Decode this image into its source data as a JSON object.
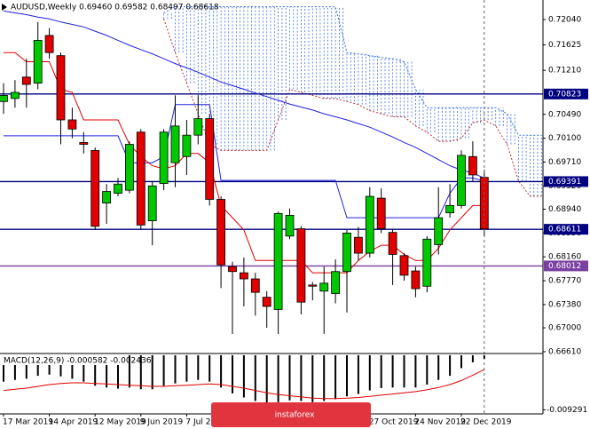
{
  "watermark": "instaforex",
  "chart_data": [
    {
      "type": "candlestick",
      "title": "AUDUSD,Weekly  0.69460 0.69582 0.68497 0.68618",
      "categories": [
        "17 Mar 2019",
        null,
        null,
        null,
        "14 Apr 2019",
        null,
        null,
        null,
        "12 May 2019",
        null,
        null,
        null,
        "9 Jun 2019",
        null,
        null,
        null,
        "7 Jul 2019",
        null,
        null,
        null,
        null,
        null,
        null,
        null,
        null,
        null,
        null,
        null,
        null,
        null,
        null,
        null,
        "27 Oct 2019",
        null,
        null,
        null,
        "24 Nov 2019",
        null,
        null,
        null,
        "22 Dec 2019",
        null,
        null,
        null,
        null,
        null,
        null,
        null
      ],
      "open": [
        0.707,
        0.7075,
        0.711,
        0.71,
        0.7178,
        0.7145,
        0.704,
        0.7003,
        0.699,
        0.6904,
        0.692,
        0.6925,
        0.702,
        0.6875,
        0.6936,
        0.697,
        0.698,
        0.7015,
        0.7042,
        0.691,
        0.68,
        0.679,
        0.678,
        0.675,
        0.673,
        0.685,
        0.6862,
        0.677,
        0.676,
        0.6756,
        0.6792,
        0.6848,
        0.6822,
        0.6912,
        0.6856,
        0.6818,
        0.6793,
        0.6768,
        0.6836,
        0.6888,
        0.69,
        0.698,
        0.6946,
        null,
        null,
        null,
        null,
        null
      ],
      "high": [
        0.71,
        0.7105,
        0.714,
        0.72,
        0.719,
        0.715,
        0.706,
        0.702,
        0.6995,
        0.6935,
        0.6945,
        0.7005,
        0.7025,
        0.694,
        0.7025,
        0.708,
        0.704,
        0.708,
        0.705,
        0.6915,
        0.6808,
        0.6815,
        0.679,
        0.676,
        0.689,
        0.6895,
        0.6866,
        0.6775,
        0.68,
        0.6812,
        0.686,
        0.6865,
        0.693,
        0.6928,
        0.6862,
        0.6822,
        0.68,
        0.685,
        0.693,
        0.6935,
        0.699,
        0.7005,
        0.69582,
        null,
        null,
        null,
        null,
        null
      ],
      "low": [
        0.705,
        0.706,
        0.706,
        0.709,
        0.714,
        0.7,
        0.701,
        0.6985,
        0.686,
        0.687,
        0.6915,
        0.692,
        0.686,
        0.6835,
        0.6925,
        0.693,
        0.695,
        0.7,
        0.69,
        0.6765,
        0.669,
        0.6735,
        0.672,
        0.67,
        0.669,
        0.6845,
        0.6722,
        0.6745,
        0.669,
        0.674,
        0.6725,
        0.681,
        0.6815,
        0.6855,
        0.677,
        0.6777,
        0.675,
        0.6758,
        0.682,
        0.688,
        0.6895,
        0.694,
        0.68497,
        null,
        null,
        null,
        null,
        null
      ],
      "close": [
        0.708,
        0.7085,
        0.7098,
        0.717,
        0.715,
        0.704,
        0.7025,
        0.7,
        0.6866,
        0.6923,
        0.6935,
        0.7,
        0.6868,
        0.6932,
        0.702,
        0.703,
        0.7015,
        0.7042,
        0.691,
        0.6803,
        0.6792,
        0.678,
        0.6758,
        0.6735,
        0.6887,
        0.6884,
        0.6742,
        0.6768,
        0.6773,
        0.6792,
        0.6855,
        0.6822,
        0.6915,
        0.6862,
        0.682,
        0.6786,
        0.6764,
        0.6845,
        0.688,
        0.69,
        0.6982,
        0.695,
        0.68618,
        null,
        null,
        null,
        null,
        null
      ],
      "up_color": "#00c800",
      "down_color": "#e00000",
      "lines": [
        {
          "color": "#2020e0",
          "values": [
            0.7218,
            0.7215,
            0.7212,
            0.7208,
            0.7205,
            0.72,
            0.7196,
            0.7192,
            0.7185,
            0.7178,
            0.717,
            0.7162,
            0.7155,
            0.7148,
            0.714,
            0.7132,
            0.7125,
            0.7118,
            0.711,
            0.7102,
            0.7096,
            0.709,
            0.7084,
            0.7078,
            0.7072,
            0.7066,
            0.7061,
            0.7056,
            0.705,
            0.7045,
            0.704,
            0.7034,
            0.7028,
            0.702,
            0.7012,
            0.7003,
            0.6995,
            0.6985,
            0.6975,
            0.6965,
            0.6958,
            0.6953,
            0.6945,
            null,
            null,
            null,
            null,
            null
          ]
        },
        {
          "color": "#2020e0",
          "values": [
            0.7014,
            0.7014,
            0.7014,
            0.7014,
            0.7014,
            0.7014,
            0.7014,
            0.7014,
            0.7014,
            0.7014,
            0.7014,
            0.697,
            0.697,
            0.697,
            0.698,
            0.7065,
            0.7065,
            0.7065,
            0.7065,
            0.6941,
            0.6941,
            0.6941,
            0.6941,
            0.6941,
            0.6941,
            0.6941,
            0.6941,
            0.6941,
            0.6941,
            0.6941,
            0.688,
            0.688,
            0.688,
            0.688,
            0.688,
            0.688,
            0.688,
            0.688,
            0.688,
            0.692,
            0.6945,
            0.6945,
            0.694,
            null,
            null,
            null,
            null,
            null
          ]
        },
        {
          "color": "#e00000",
          "values": [
            0.715,
            0.715,
            0.7135,
            0.7135,
            0.7135,
            0.709,
            0.7085,
            0.704,
            0.704,
            0.704,
            0.704,
            0.7,
            0.698,
            0.6965,
            0.696,
            0.6965,
            0.6985,
            0.6985,
            0.697,
            0.69,
            0.688,
            0.686,
            0.681,
            0.681,
            0.681,
            0.681,
            0.681,
            0.679,
            0.679,
            0.679,
            0.679,
            0.681,
            0.6825,
            0.6835,
            0.6835,
            0.682,
            0.681,
            0.681,
            0.683,
            0.686,
            0.688,
            0.69,
            0.69,
            null,
            null,
            null,
            null,
            null
          ]
        }
      ],
      "cloud": {
        "color": "#3a6fe0",
        "span_a_color": "#c03030",
        "span_b_color": "#3a6fe0",
        "span_a": [
          null,
          null,
          null,
          null,
          null,
          null,
          null,
          null,
          null,
          null,
          null,
          null,
          null,
          null,
          0.7205,
          0.715,
          0.71,
          0.705,
          0.7,
          0.699,
          0.699,
          0.699,
          0.699,
          0.699,
          0.704,
          0.709,
          0.7085,
          0.708,
          0.7075,
          0.7075,
          0.707,
          0.7065,
          0.7055,
          0.705,
          0.7045,
          0.7045,
          0.703,
          0.702,
          0.7005,
          0.7005,
          0.701,
          0.7035,
          0.704,
          0.703,
          0.7,
          0.694,
          0.6915,
          0.6915
        ],
        "span_b": [
          null,
          null,
          null,
          null,
          null,
          null,
          null,
          null,
          null,
          null,
          null,
          null,
          null,
          null,
          0.7215,
          0.7225,
          0.7225,
          0.7225,
          0.7225,
          0.7225,
          0.7225,
          0.7225,
          0.7225,
          0.7225,
          0.7225,
          0.7225,
          0.7225,
          0.7225,
          0.7225,
          0.7225,
          0.715,
          0.7148,
          0.7145,
          0.7142,
          0.714,
          0.7135,
          0.709,
          0.706,
          0.706,
          0.706,
          0.706,
          0.706,
          0.706,
          0.706,
          0.705,
          0.7015,
          0.7015,
          0.7015
        ]
      },
      "levels": [
        {
          "value": 0.70823,
          "label": "0.70823",
          "color": "#000080"
        },
        {
          "value": 0.69391,
          "label": "0.69391",
          "color": "#000080"
        },
        {
          "value": 0.68611,
          "label": "0.68611",
          "color": "#000080"
        },
        {
          "value": 0.68012,
          "label": "0.68012",
          "color": "#7a3fa0"
        }
      ],
      "ylim": [
        0.6658,
        0.7236
      ],
      "yticks": [
        {
          "value": 0.7204,
          "label": "0.72040"
        },
        {
          "value": 0.71625,
          "label": "0.71625"
        },
        {
          "value": 0.7121,
          "label": "0.71210"
        },
        {
          "value": 0.7049,
          "label": "0.70490"
        },
        {
          "value": 0.701,
          "label": "0.70100"
        },
        {
          "value": 0.6971,
          "label": "0.69710"
        },
        {
          "value": 0.6932,
          "label": "0.69320"
        },
        {
          "value": 0.6894,
          "label": "0.68940"
        },
        {
          "value": 0.6855,
          "label": "0.68550"
        },
        {
          "value": 0.6816,
          "label": "0.68160"
        },
        {
          "value": 0.6777,
          "label": "0.67770"
        },
        {
          "value": 0.6738,
          "label": "0.67380"
        },
        {
          "value": 0.67,
          "label": "0.67000"
        },
        {
          "value": 0.6661,
          "label": "0.66610"
        }
      ]
    },
    {
      "type": "macd",
      "title": "MACD(12,26,9) -0.000582 -0.002436",
      "histogram": [
        -0.0045,
        -0.0042,
        -0.004,
        -0.0035,
        -0.0033,
        -0.0036,
        -0.004,
        -0.0045,
        -0.0052,
        -0.0055,
        -0.0057,
        -0.0055,
        -0.0058,
        -0.0058,
        -0.0052,
        -0.0048,
        -0.0045,
        -0.0042,
        -0.0045,
        -0.0055,
        -0.0065,
        -0.0072,
        -0.0078,
        -0.0082,
        -0.008,
        -0.0077,
        -0.0078,
        -0.008,
        -0.0078,
        -0.0075,
        -0.007,
        -0.0066,
        -0.006,
        -0.0056,
        -0.0055,
        -0.0055,
        -0.0055,
        -0.005,
        -0.0042,
        -0.0035,
        -0.0022,
        -0.0012,
        -0.000582
      ],
      "signal": [
        -0.006,
        -0.0058,
        -0.0056,
        -0.0053,
        -0.005,
        -0.0048,
        -0.0047,
        -0.0047,
        -0.0048,
        -0.0049,
        -0.005,
        -0.0051,
        -0.0052,
        -0.0053,
        -0.0053,
        -0.0052,
        -0.0051,
        -0.005,
        -0.0049,
        -0.005,
        -0.0053,
        -0.0056,
        -0.006,
        -0.0064,
        -0.0067,
        -0.0069,
        -0.0071,
        -0.0073,
        -0.0074,
        -0.0074,
        -0.0073,
        -0.0072,
        -0.007,
        -0.0068,
        -0.0066,
        -0.0064,
        -0.0062,
        -0.0059,
        -0.0055,
        -0.005,
        -0.0043,
        -0.0034,
        -0.002436
      ],
      "histogram_color": "#000000",
      "signal_color": "#e00000",
      "ylim": [
        -0.01,
        0.0003
      ],
      "yticks": [
        {
          "value": -0.009291,
          "label": "-0.009291"
        }
      ]
    }
  ]
}
